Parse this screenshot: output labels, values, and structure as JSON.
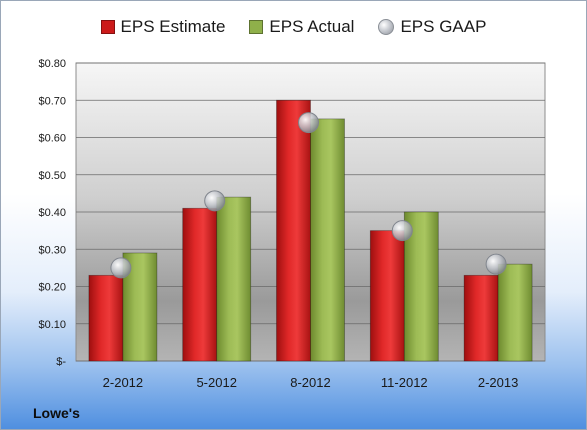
{
  "company": "Lowe's",
  "chart_data": {
    "type": "bar",
    "categories": [
      "2-2012",
      "5-2012",
      "8-2012",
      "11-2012",
      "2-2013"
    ],
    "series": [
      {
        "name": "EPS Estimate",
        "kind": "bar",
        "color": "#cc1a1a",
        "values": [
          0.23,
          0.41,
          0.7,
          0.35,
          0.23
        ]
      },
      {
        "name": "EPS Actual",
        "kind": "bar",
        "color": "#8fb04a",
        "values": [
          0.29,
          0.44,
          0.65,
          0.4,
          0.26
        ]
      },
      {
        "name": "EPS GAAP",
        "kind": "marker",
        "color": "#b8bcc4",
        "values": [
          0.25,
          0.43,
          0.64,
          0.35,
          0.26
        ]
      }
    ],
    "ylim": [
      0,
      0.8
    ],
    "yticks": [
      0,
      0.1,
      0.2,
      0.3,
      0.4,
      0.5,
      0.6,
      0.7,
      0.8
    ],
    "ytick_labels": [
      "$-",
      "$0.10",
      "$0.20",
      "$0.30",
      "$0.40",
      "$0.50",
      "$0.60",
      "$0.70",
      "$0.80"
    ],
    "grid": true,
    "legend_position": "top"
  }
}
